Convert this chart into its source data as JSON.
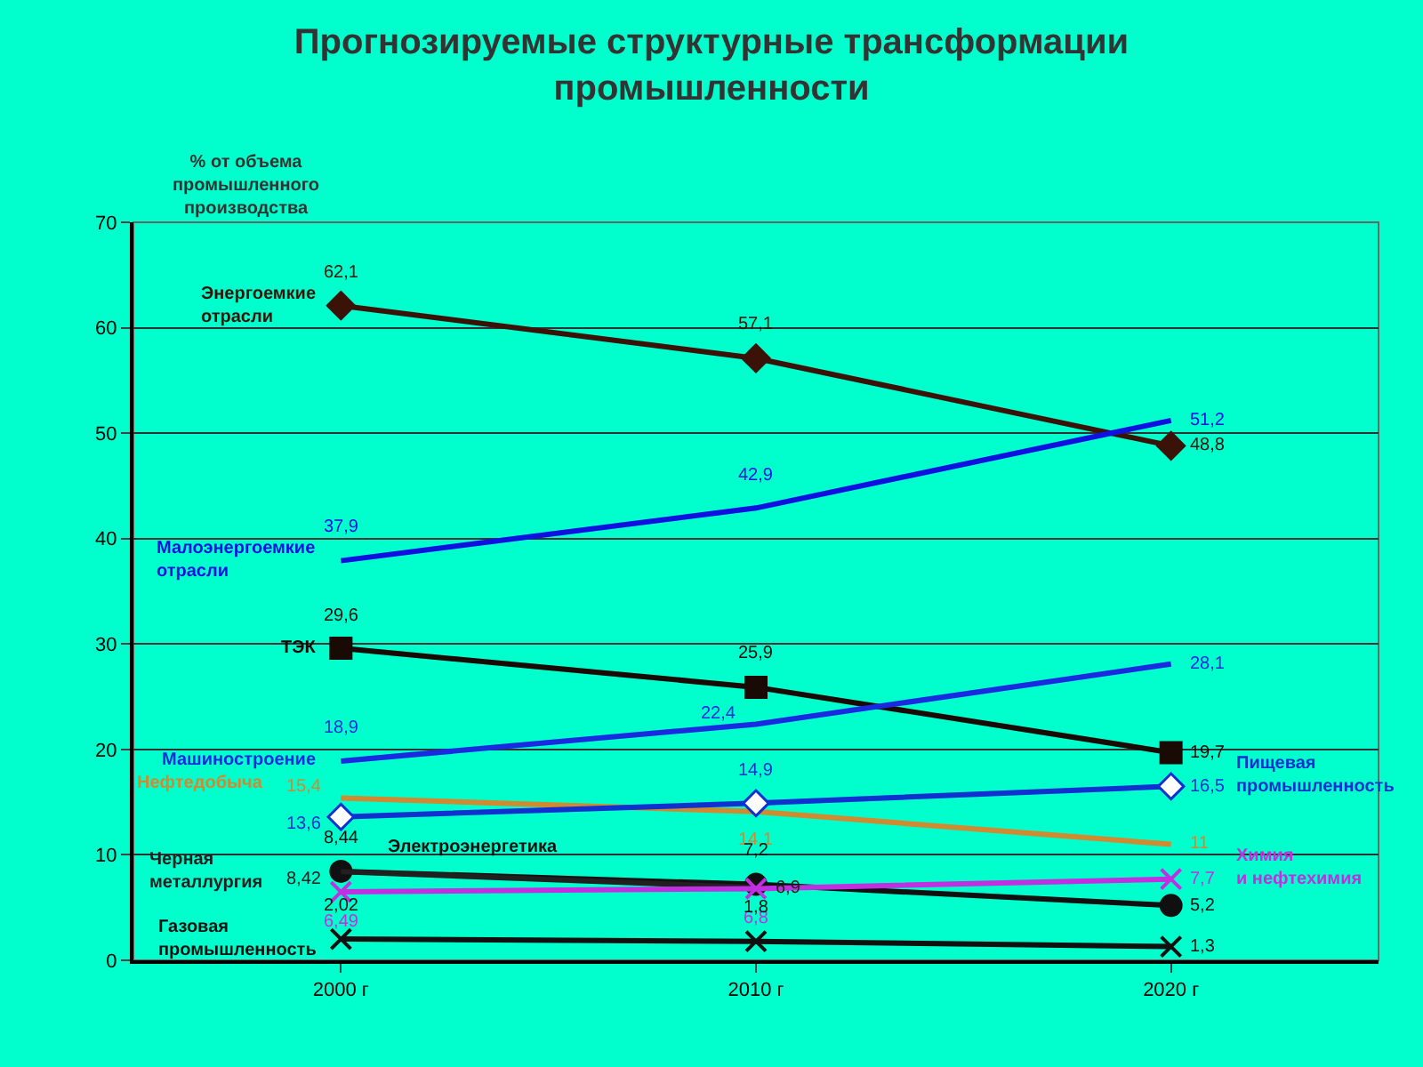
{
  "chart_data": {
    "type": "line",
    "title": "Прогнозируемые структурные трансформации промышленности",
    "ylabel": "% от объема промышленного производства",
    "categories": [
      "2000 г",
      "2010 г",
      "2020 г"
    ],
    "ylim": [
      0,
      70
    ],
    "yticks": [
      0,
      10,
      20,
      30,
      40,
      50,
      60,
      70
    ],
    "grid": "y",
    "legend": false,
    "series": [
      {
        "name": "Энергоемкие отрасли",
        "color": "#3a1208",
        "marker": "diamond",
        "values": [
          62.1,
          57.1,
          48.8
        ],
        "value_labels": [
          "62,1",
          "57,1",
          "48,8"
        ]
      },
      {
        "name": "Малоэнергоемкие отрасли",
        "color": "#1010e0",
        "marker": "none",
        "values": [
          37.9,
          42.9,
          51.2
        ],
        "value_labels": [
          "37,9",
          "42,9",
          "51,2"
        ]
      },
      {
        "name": "ТЭК",
        "color": "#1a0a05",
        "marker": "square",
        "values": [
          29.6,
          25.9,
          19.7
        ],
        "value_labels": [
          "29,6",
          "25,9",
          "19,7"
        ]
      },
      {
        "name": "Машиностроение",
        "color": "#1a2ae0",
        "marker": "none",
        "values": [
          18.9,
          22.4,
          28.1
        ],
        "value_labels": [
          "18,9",
          "22,4",
          "28,1"
        ]
      },
      {
        "name": "Нефтедобыча",
        "color": "#d08a30",
        "marker": "none",
        "values": [
          15.4,
          14.1,
          11
        ],
        "value_labels": [
          "15,4",
          "14,1",
          "11"
        ]
      },
      {
        "name": "Пищевая промышленность",
        "color": "#1030d0",
        "marker": "diamond",
        "values": [
          13.6,
          14.9,
          16.5
        ],
        "value_labels": [
          "13,6",
          "14,9",
          "16,5"
        ]
      },
      {
        "name": "Электроэнергетика",
        "color": "#101010",
        "marker": "circle",
        "values": [
          8.44,
          7.2,
          5.2
        ],
        "value_labels": [
          "8,44",
          "7,2",
          "5,2"
        ]
      },
      {
        "name": "Черная металлургия",
        "color": "#202020",
        "marker": "none",
        "values": [
          8.42,
          6.9,
          null
        ],
        "value_labels": [
          "8,42",
          "6,9",
          null
        ]
      },
      {
        "name": "Химия и нефтехимия",
        "color": "#c030e0",
        "marker": "cross",
        "values": [
          6.49,
          6.8,
          7.7
        ],
        "value_labels": [
          "6,49",
          "6,8",
          "7,7"
        ]
      },
      {
        "name": "Газовая промышленность",
        "color": "#101010",
        "marker": "cross",
        "values": [
          2.02,
          1.8,
          1.3
        ],
        "value_labels": [
          "2,02",
          "1,8",
          "1,3"
        ]
      }
    ]
  }
}
